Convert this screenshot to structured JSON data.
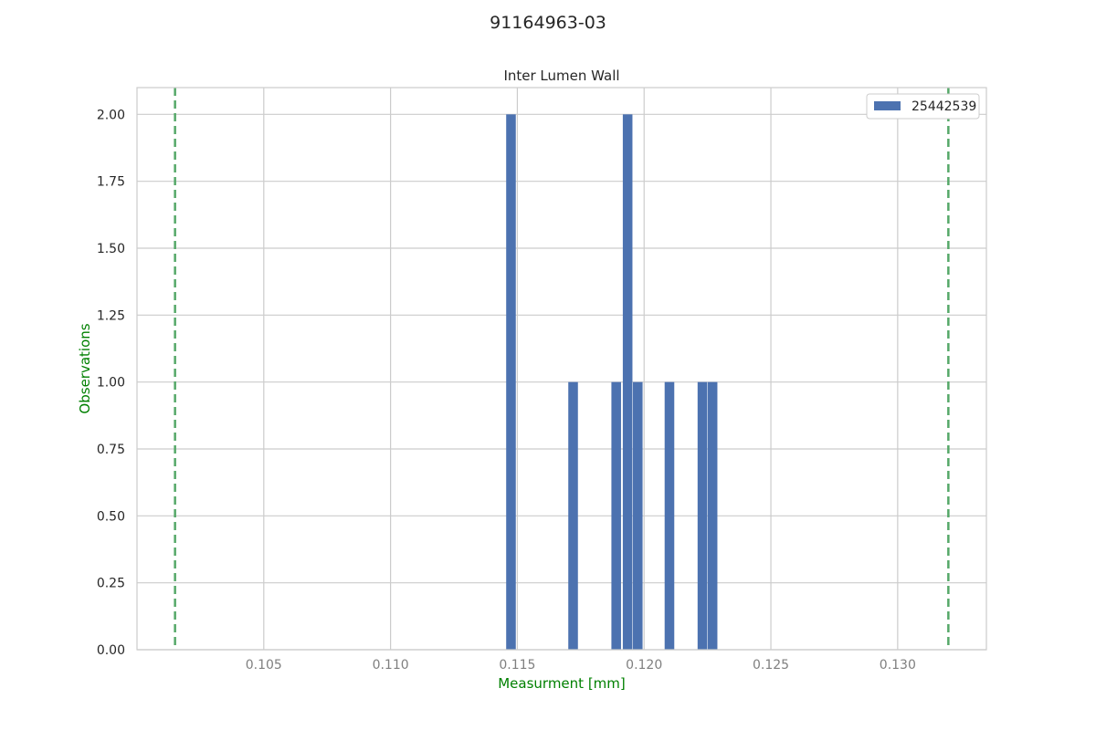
{
  "figure_title": "91164963-03",
  "chart_data": {
    "type": "bar",
    "title": "Inter Lumen Wall",
    "xlabel": "Measurment [mm]",
    "ylabel": "Observations",
    "xlim": [
      0.1,
      0.1335
    ],
    "ylim": [
      0,
      2.1
    ],
    "xticks": [
      0.105,
      0.11,
      0.115,
      0.12,
      0.125,
      0.13
    ],
    "xtick_labels": [
      "0.105",
      "0.110",
      "0.115",
      "0.120",
      "0.125",
      "0.130"
    ],
    "yticks": [
      0,
      0.25,
      0.5,
      0.75,
      1.0,
      1.25,
      1.5,
      1.75,
      2.0
    ],
    "ytick_labels": [
      "0.00",
      "0.25",
      "0.50",
      "0.75",
      "1.00",
      "1.25",
      "1.50",
      "1.75",
      "2.00"
    ],
    "bin_width": 0.00038,
    "series": [
      {
        "name": "25442539",
        "color": "#4c72b0",
        "x": [
          0.11475,
          0.1172,
          0.1189,
          0.11935,
          0.11975,
          0.121,
          0.1223,
          0.1227
        ],
        "values": [
          2,
          1,
          1,
          2,
          1,
          1,
          1,
          1
        ]
      }
    ],
    "reference_lines": {
      "color": "#55a868",
      "style": "dashed",
      "x": [
        0.1015,
        0.132
      ]
    },
    "grid": true,
    "legend_position": "top-right"
  }
}
